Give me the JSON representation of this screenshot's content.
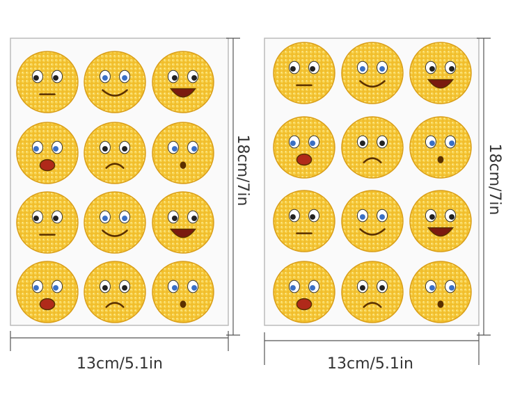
{
  "sheets": [
    {
      "width_label": "13cm/5.1in",
      "height_label": "18cm/7in"
    },
    {
      "width_label": "13cm/5.1in",
      "height_label": "18cm/7in"
    }
  ]
}
